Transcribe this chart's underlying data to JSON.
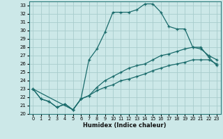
{
  "xlabel": "Humidex (Indice chaleur)",
  "background_color": "#cce8e8",
  "grid_color": "#a8cccc",
  "line_color": "#1a6b6b",
  "xlim": [
    -0.5,
    23.5
  ],
  "ylim": [
    20,
    33.5
  ],
  "yticks": [
    20,
    21,
    22,
    23,
    24,
    25,
    26,
    27,
    28,
    29,
    30,
    31,
    32,
    33
  ],
  "xticks": [
    0,
    1,
    2,
    3,
    4,
    5,
    6,
    7,
    8,
    9,
    10,
    11,
    12,
    13,
    14,
    15,
    16,
    17,
    18,
    19,
    20,
    21,
    22,
    23
  ],
  "line1_x": [
    0,
    1,
    2,
    3,
    4,
    5,
    6,
    7,
    8,
    9,
    10,
    11,
    12,
    13,
    14,
    15,
    16,
    17,
    18,
    19,
    20,
    21,
    22,
    23
  ],
  "line1_y": [
    23.0,
    21.8,
    21.5,
    20.8,
    21.2,
    20.5,
    21.8,
    26.5,
    27.8,
    29.8,
    32.2,
    32.2,
    32.2,
    32.5,
    33.2,
    33.2,
    32.2,
    30.5,
    30.2,
    30.2,
    28.0,
    27.8,
    27.0,
    26.5
  ],
  "line2_x": [
    0,
    1,
    2,
    3,
    4,
    5,
    6,
    7,
    8,
    9,
    10,
    11,
    12,
    13,
    14,
    15,
    16,
    17,
    18,
    19,
    20,
    21,
    22,
    23
  ],
  "line2_y": [
    23.0,
    21.8,
    21.5,
    20.8,
    21.2,
    20.5,
    21.8,
    22.2,
    23.2,
    24.0,
    24.5,
    25.0,
    25.5,
    25.8,
    26.0,
    26.5,
    27.0,
    27.2,
    27.5,
    27.8,
    28.0,
    28.0,
    26.8,
    25.8
  ],
  "line3_x": [
    0,
    5,
    6,
    7,
    8,
    9,
    10,
    11,
    12,
    13,
    14,
    15,
    16,
    17,
    18,
    19,
    20,
    21,
    22,
    23
  ],
  "line3_y": [
    23.0,
    20.5,
    21.8,
    22.2,
    22.8,
    23.2,
    23.5,
    24.0,
    24.2,
    24.5,
    24.8,
    25.2,
    25.5,
    25.8,
    26.0,
    26.2,
    26.5,
    26.5,
    26.5,
    26.0
  ]
}
